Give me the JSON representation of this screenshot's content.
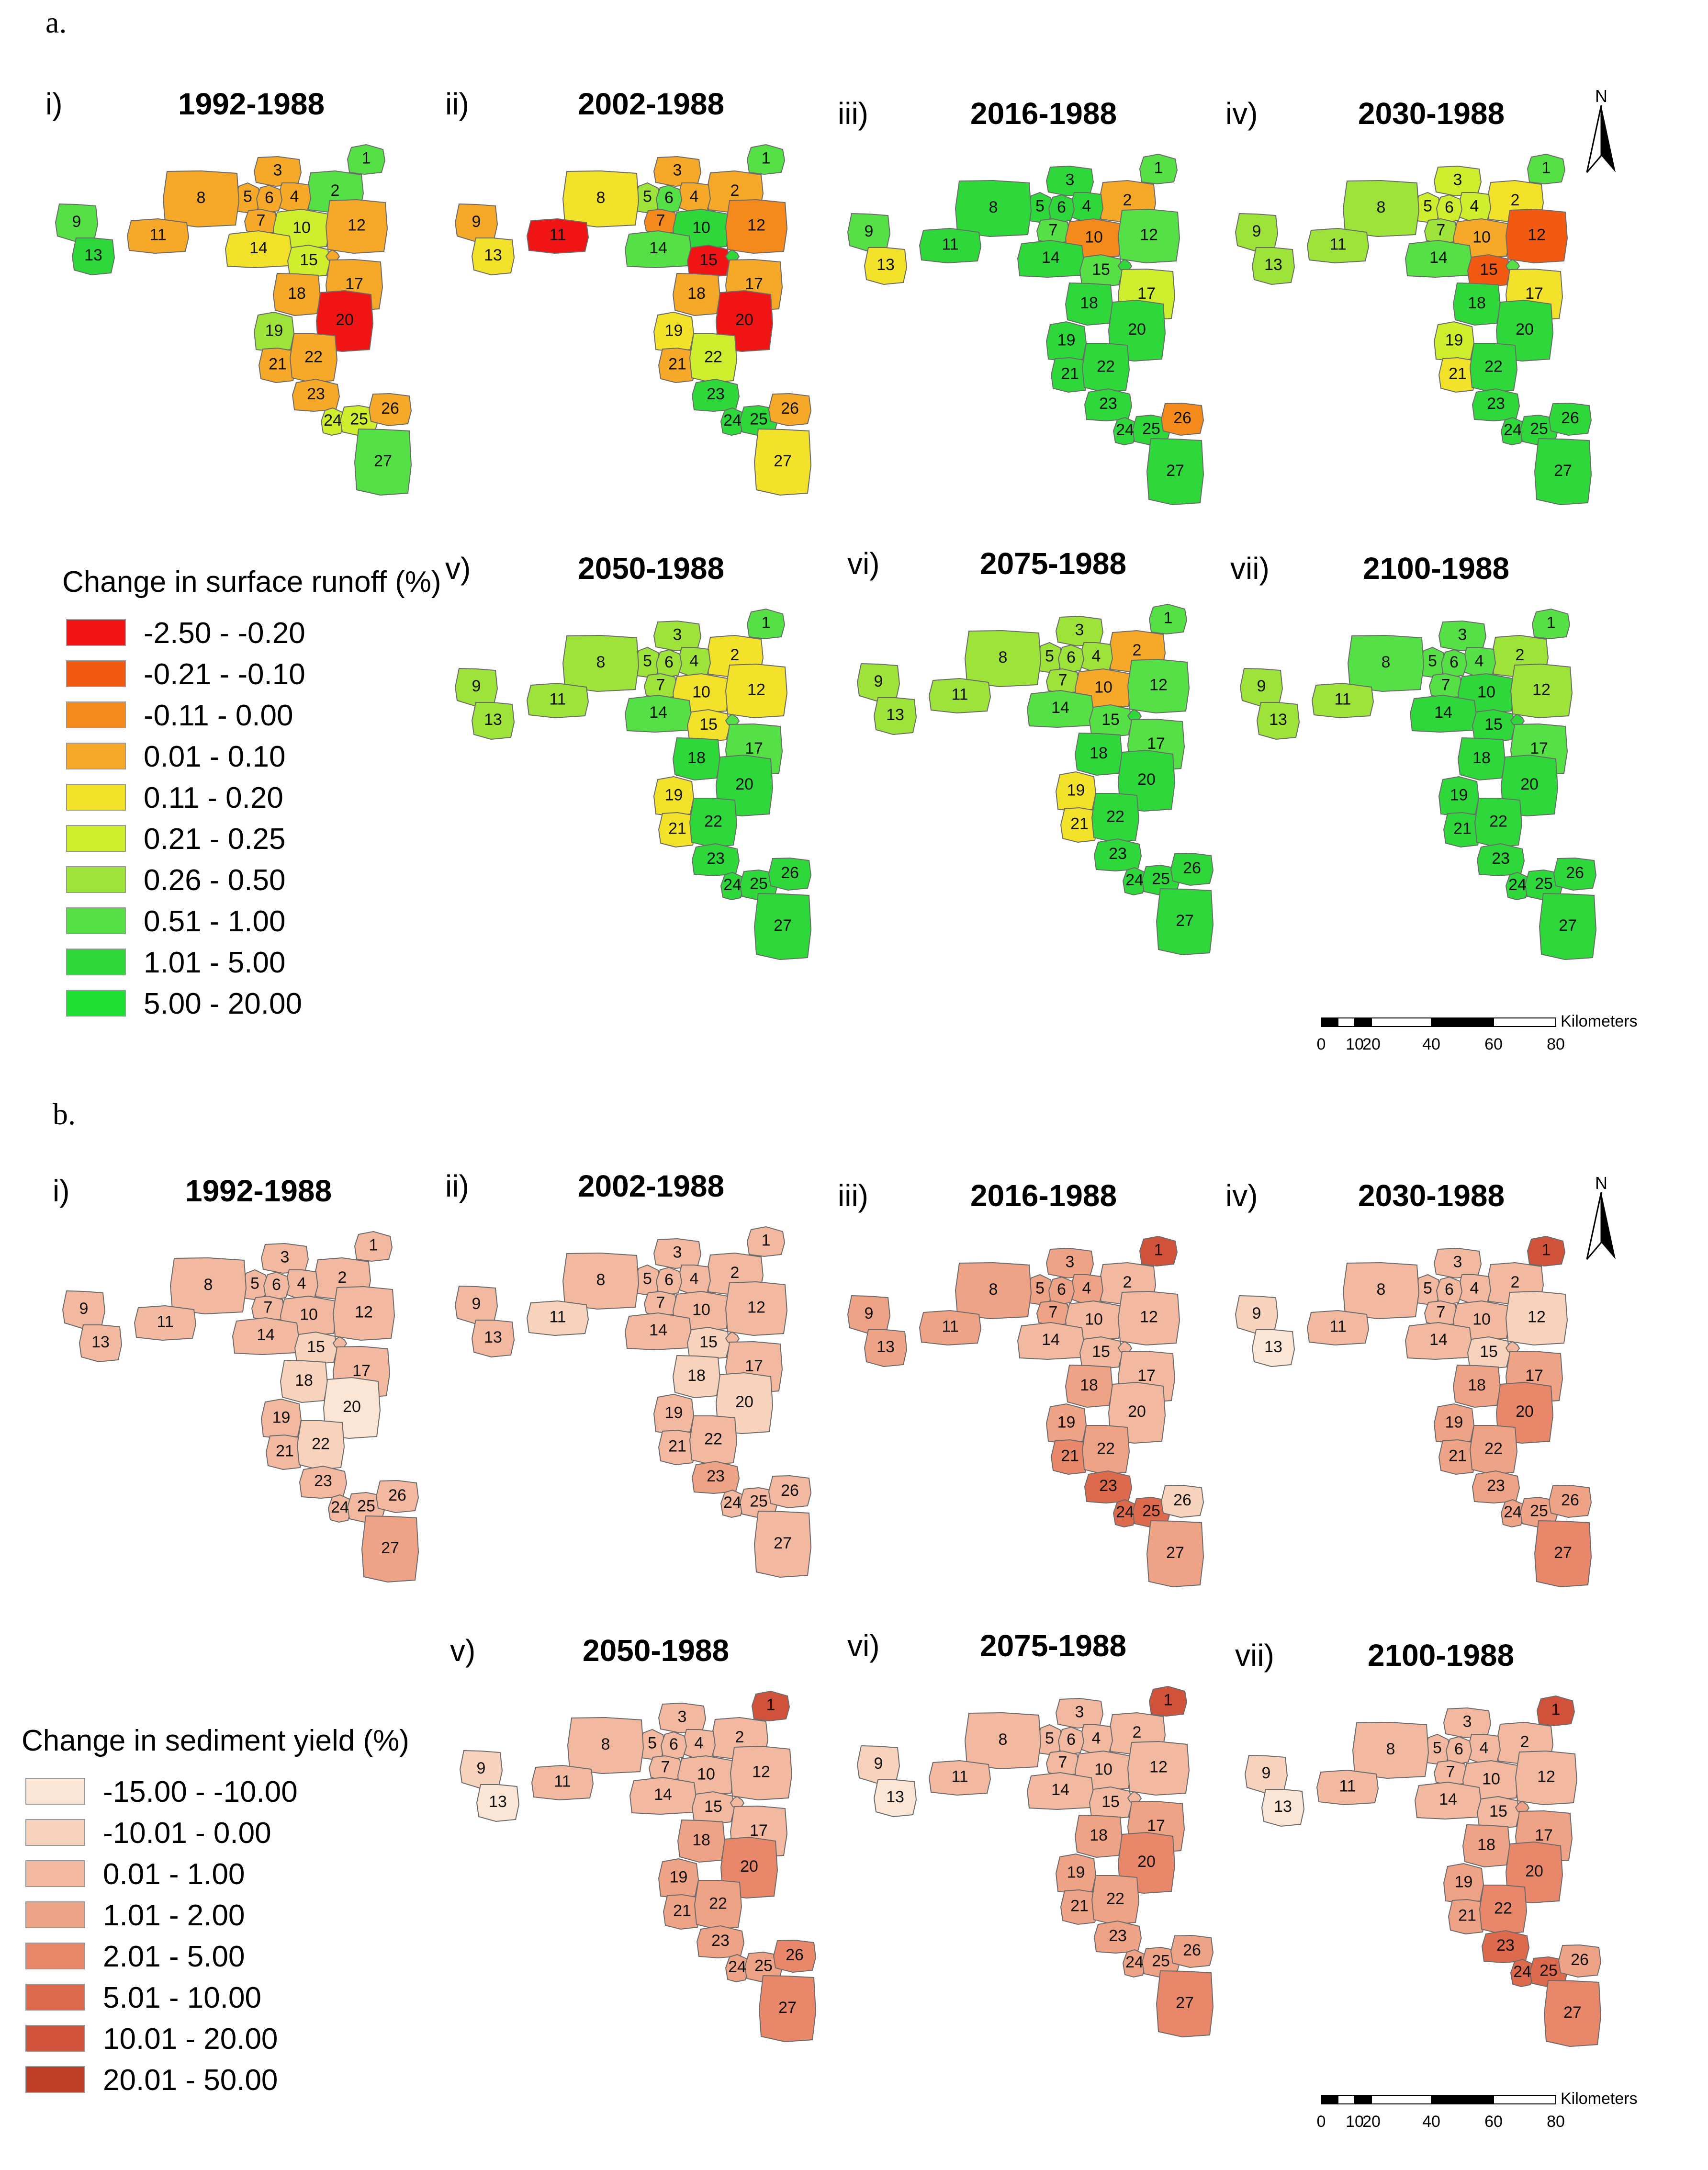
{
  "sections": [
    {
      "id": "a",
      "letter": "a.",
      "legend": {
        "title": "Change in surface runoff (%)",
        "classes": [
          {
            "range": "-2.50 - -0.20",
            "color": "#f01414"
          },
          {
            "range": "-0.21 - -0.10",
            "color": "#f25a12"
          },
          {
            "range": "-0.11 - 0.00",
            "color": "#f58a1c"
          },
          {
            "range": "0.01 - 0.10",
            "color": "#f6a828"
          },
          {
            "range": "0.11 - 0.20",
            "color": "#f3e22a"
          },
          {
            "range": "0.21 - 0.25",
            "color": "#cfee2e"
          },
          {
            "range": "0.26 - 0.50",
            "color": "#9de33a"
          },
          {
            "range": "0.51 - 1.00",
            "color": "#55e046"
          },
          {
            "range": "1.01 - 5.00",
            "color": "#2ed83a"
          },
          {
            "range": "5.00 - 20.00",
            "color": "#1ee032"
          }
        ]
      },
      "panels": [
        {
          "roman": "i)",
          "title": "1992-1988",
          "classes": [
            7,
            7,
            3,
            3,
            3,
            3,
            3,
            3,
            7,
            5,
            3,
            3,
            8,
            4,
            5,
            3,
            3,
            3,
            6,
            0,
            3,
            3,
            3,
            5,
            5,
            3,
            7
          ]
        },
        {
          "roman": "ii)",
          "title": "2002-1988",
          "classes": [
            7,
            3,
            3,
            3,
            6,
            7,
            2,
            4,
            3,
            8,
            0,
            2,
            4,
            7,
            0,
            8,
            3,
            3,
            4,
            0,
            3,
            5,
            8,
            8,
            8,
            3,
            4
          ]
        },
        {
          "roman": "iii)",
          "title": "2016-1988",
          "classes": [
            7,
            3,
            8,
            8,
            8,
            8,
            7,
            8,
            7,
            2,
            8,
            7,
            4,
            8,
            7,
            8,
            5,
            8,
            8,
            8,
            8,
            8,
            8,
            8,
            8,
            2,
            8
          ]
        },
        {
          "roman": "iv)",
          "title": "2030-1988",
          "classes": [
            7,
            4,
            5,
            5,
            5,
            5,
            6,
            6,
            6,
            3,
            6,
            1,
            6,
            7,
            1,
            7,
            4,
            8,
            5,
            8,
            4,
            8,
            8,
            8,
            8,
            8,
            8
          ]
        },
        {
          "roman": "v)",
          "title": "2050-1988",
          "classes": [
            7,
            4,
            6,
            6,
            6,
            6,
            6,
            6,
            6,
            4,
            6,
            4,
            6,
            7,
            4,
            7,
            7,
            8,
            4,
            8,
            4,
            8,
            8,
            8,
            8,
            8,
            8
          ]
        },
        {
          "roman": "vi)",
          "title": "2075-1988",
          "classes": [
            7,
            3,
            6,
            6,
            6,
            6,
            6,
            6,
            6,
            3,
            6,
            7,
            6,
            7,
            7,
            8,
            7,
            8,
            4,
            8,
            4,
            8,
            8,
            8,
            8,
            8,
            8
          ]
        },
        {
          "roman": "vii)",
          "title": "2100-1988",
          "classes": [
            7,
            6,
            7,
            7,
            7,
            7,
            7,
            7,
            6,
            8,
            6,
            6,
            6,
            8,
            8,
            8,
            7,
            8,
            8,
            8,
            8,
            8,
            8,
            8,
            8,
            8,
            8
          ]
        }
      ],
      "north_label": "N",
      "scale": {
        "unit": "Kilometers",
        "ticks": [
          "0",
          "10",
          "20",
          "40",
          "60",
          "80"
        ]
      }
    },
    {
      "id": "b",
      "letter": "b.",
      "legend": {
        "title": "Change in sediment yield (%)",
        "classes": [
          {
            "range": "-15.00 - -10.00",
            "color": "#fbe6d6"
          },
          {
            "range": "-10.01 - 0.00",
            "color": "#f7d2bc"
          },
          {
            "range": "0.01 - 1.00",
            "color": "#f2b9a0"
          },
          {
            "range": "1.01 - 2.00",
            "color": "#eea286"
          },
          {
            "range": "2.01 - 5.00",
            "color": "#e8876a"
          },
          {
            "range": "5.01 - 10.00",
            "color": "#de6a4d"
          },
          {
            "range": "10.01 - 20.00",
            "color": "#d0523a"
          },
          {
            "range": "20.01 - 50.00",
            "color": "#bf3e26"
          }
        ]
      },
      "panels": [
        {
          "roman": "i)",
          "title": "1992-1988",
          "classes": [
            2,
            2,
            2,
            2,
            2,
            2,
            2,
            2,
            2,
            2,
            2,
            2,
            2,
            2,
            1,
            2,
            2,
            1,
            2,
            0,
            2,
            1,
            2,
            2,
            2,
            2,
            3
          ]
        },
        {
          "roman": "ii)",
          "title": "2002-1988",
          "classes": [
            2,
            2,
            2,
            2,
            2,
            2,
            2,
            2,
            2,
            2,
            1,
            2,
            2,
            2,
            1,
            2,
            2,
            1,
            2,
            1,
            2,
            2,
            3,
            2,
            2,
            2,
            2
          ]
        },
        {
          "roman": "iii)",
          "title": "2016-1988",
          "classes": [
            6,
            2,
            3,
            3,
            3,
            3,
            3,
            3,
            3,
            2,
            3,
            2,
            3,
            2,
            2,
            2,
            2,
            3,
            3,
            2,
            4,
            3,
            5,
            5,
            5,
            1,
            3
          ]
        },
        {
          "roman": "iv)",
          "title": "2030-1988",
          "classes": [
            6,
            2,
            2,
            2,
            2,
            2,
            2,
            2,
            1,
            2,
            2,
            1,
            0,
            2,
            1,
            2,
            3,
            3,
            3,
            4,
            3,
            3,
            3,
            3,
            3,
            3,
            4
          ]
        },
        {
          "roman": "v)",
          "title": "2050-1988",
          "classes": [
            6,
            2,
            2,
            2,
            2,
            2,
            2,
            2,
            1,
            2,
            2,
            2,
            0,
            2,
            2,
            2,
            2,
            3,
            3,
            4,
            3,
            3,
            3,
            3,
            3,
            4,
            4
          ]
        },
        {
          "roman": "vi)",
          "title": "2075-1988",
          "classes": [
            6,
            2,
            2,
            2,
            2,
            2,
            2,
            2,
            1,
            2,
            2,
            2,
            0,
            2,
            2,
            2,
            3,
            3,
            3,
            4,
            3,
            3,
            3,
            3,
            3,
            3,
            4
          ]
        },
        {
          "roman": "vii)",
          "title": "2100-1988",
          "classes": [
            6,
            2,
            2,
            2,
            2,
            2,
            2,
            2,
            1,
            2,
            2,
            2,
            0,
            2,
            2,
            3,
            3,
            3,
            3,
            4,
            3,
            4,
            5,
            5,
            5,
            3,
            4
          ]
        }
      ],
      "north_label": "N",
      "scale": {
        "unit": "Kilometers",
        "ticks": [
          "0",
          "10",
          "20",
          "40",
          "60",
          "80"
        ]
      }
    }
  ]
}
